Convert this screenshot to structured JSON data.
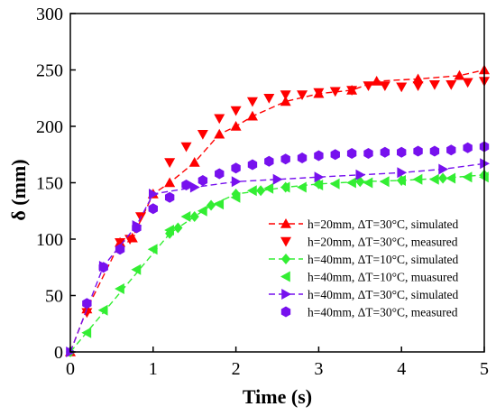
{
  "chart_data": {
    "type": "scatter",
    "xlabel": "Time (s)",
    "ylabel": "δ (mm)",
    "xlim": [
      0,
      5
    ],
    "ylim": [
      0,
      300
    ],
    "xticks": [
      "0",
      "1",
      "2",
      "3",
      "4",
      "5"
    ],
    "yticks": [
      "0",
      "50",
      "100",
      "150",
      "200",
      "250",
      "300"
    ],
    "grid": false,
    "legend_position": "bottom-right",
    "series": [
      {
        "name": "h=20mm, ΔT=30°C, simulated",
        "style": "dashed-line-marker",
        "marker": "triangle-up",
        "color": "#ff0000",
        "x": [
          0,
          0.2,
          0.6,
          0.75,
          1.0,
          1.2,
          1.5,
          1.8,
          2.0,
          2.2,
          2.6,
          3.0,
          3.4,
          3.7,
          4.2,
          4.7,
          5.0
        ],
        "y": [
          0,
          38,
          97,
          101,
          140,
          150,
          168,
          193,
          200,
          209,
          222,
          229,
          232,
          240,
          242,
          245,
          250
        ]
      },
      {
        "name": "h=20mm, ΔT=30°C, measured",
        "style": "marker",
        "marker": "triangle-down",
        "color": "#ff0000",
        "x": [
          0.2,
          0.6,
          0.72,
          0.85,
          1.2,
          1.4,
          1.6,
          1.8,
          2.0,
          2.2,
          2.4,
          2.6,
          2.8,
          3.0,
          3.2,
          3.4,
          3.6,
          3.8,
          4.0,
          4.2,
          4.4,
          4.6,
          4.8,
          5.0
        ],
        "y": [
          35,
          97,
          100,
          120,
          168,
          182,
          193,
          207,
          214,
          222,
          225,
          228,
          228,
          230,
          231,
          232,
          236,
          236,
          235,
          236,
          237,
          237,
          239,
          240
        ]
      },
      {
        "name": "h=40mm, ΔT=10°C, simulated",
        "style": "dashed-line-marker",
        "marker": "diamond",
        "color": "#33ee33",
        "x": [
          0,
          1.2,
          1.3,
          1.5,
          1.7,
          2.0,
          2.3,
          2.6,
          3.0,
          3.5,
          4.0,
          4.5,
          5.0
        ],
        "y": [
          0,
          105,
          110,
          120,
          130,
          140,
          143,
          146,
          149,
          151,
          152,
          154,
          157
        ]
      },
      {
        "name": "h=40mm, ΔT=10°C, muasured",
        "style": "marker",
        "marker": "triangle-left",
        "color": "#33ee33",
        "x": [
          0.2,
          0.4,
          0.6,
          0.8,
          1.0,
          1.2,
          1.4,
          1.6,
          1.8,
          2.0,
          2.2,
          2.4,
          2.6,
          2.8,
          3.0,
          3.2,
          3.4,
          3.6,
          3.8,
          4.0,
          4.2,
          4.4,
          4.6,
          4.8,
          5.0
        ],
        "y": [
          17,
          37,
          56,
          73,
          91,
          108,
          120,
          125,
          131,
          137,
          143,
          145,
          146,
          146,
          148,
          149,
          150,
          150,
          151,
          152,
          153,
          153,
          154,
          155,
          155
        ]
      },
      {
        "name": "h=40mm, ΔT=30°C, simulated",
        "style": "dashed-line-marker",
        "marker": "triangle-right",
        "color": "#7711ee",
        "x": [
          0,
          0.4,
          0.8,
          1.0,
          1.5,
          2.0,
          2.5,
          3.0,
          3.5,
          4.0,
          4.5,
          5.0
        ],
        "y": [
          0,
          76,
          112,
          140,
          146,
          151,
          153,
          155,
          157,
          159,
          162,
          167
        ]
      },
      {
        "name": "h=40mm, ΔT=30°C, measured",
        "style": "marker",
        "marker": "hexagon",
        "color": "#7711ee",
        "x": [
          0.2,
          0.4,
          0.6,
          0.8,
          1.0,
          1.2,
          1.4,
          1.6,
          1.8,
          2.0,
          2.2,
          2.4,
          2.6,
          2.8,
          3.0,
          3.2,
          3.4,
          3.6,
          3.8,
          4.0,
          4.2,
          4.4,
          4.6,
          4.8,
          5.0
        ],
        "y": [
          43,
          75,
          91,
          110,
          127,
          137,
          148,
          152,
          158,
          163,
          166,
          169,
          171,
          172,
          174,
          175,
          176,
          176,
          177,
          177,
          178,
          178,
          179,
          181,
          182
        ]
      }
    ]
  }
}
